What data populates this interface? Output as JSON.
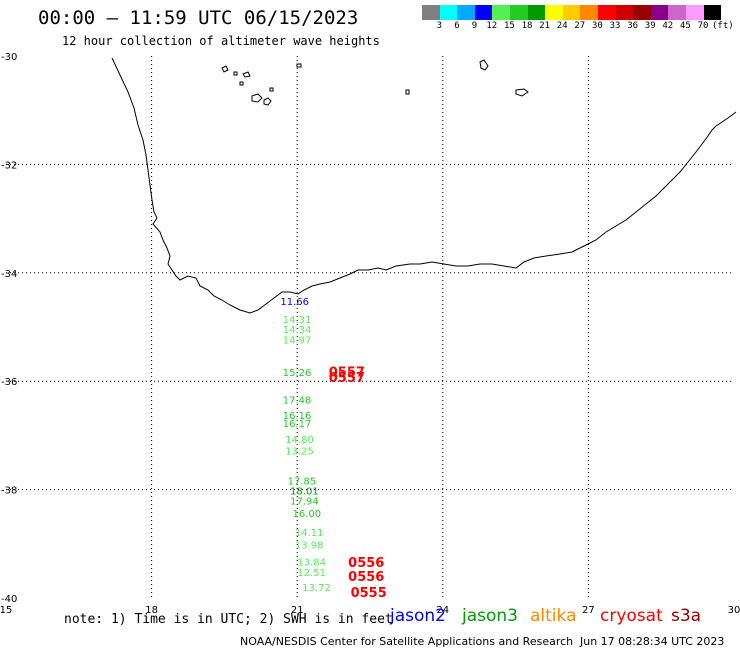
{
  "header": {
    "title": "00:00 – 11:59 UTC 06/15/2023",
    "subtitle": "12 hour collection of altimeter wave heights"
  },
  "color_scale": {
    "colors": [
      "#808080",
      "#00ffff",
      "#00aaff",
      "#0000ff",
      "#55ee55",
      "#22cc22",
      "#009900",
      "#ffff00",
      "#ffcc00",
      "#ff8800",
      "#ff0000",
      "#cc0000",
      "#990000",
      "#880088",
      "#cc66cc",
      "#ff99ff",
      "#000000"
    ],
    "labels": [
      "3",
      "6",
      "9",
      "12",
      "15",
      "18",
      "21",
      "24",
      "27",
      "30",
      "33",
      "36",
      "39",
      "42",
      "45",
      "70"
    ],
    "unit": "(ft)"
  },
  "map": {
    "lon_range": [
      15,
      30
    ],
    "lat_range": [
      -40,
      -30
    ],
    "lon_ticks": [
      "15",
      "18",
      "21",
      "24",
      "27",
      "30"
    ],
    "lat_ticks": [
      "-30",
      "-32",
      "-34",
      "-36",
      "-38",
      "-40"
    ],
    "observations": [
      {
        "lon": 20.9,
        "lat": -34.52,
        "text": "11.66",
        "color": "#0000ff"
      },
      {
        "lon": 20.95,
        "lat": -34.85,
        "text": "14.31",
        "color": "#55ee55"
      },
      {
        "lon": 20.95,
        "lat": -35.04,
        "text": "14.34",
        "color": "#55ee55"
      },
      {
        "lon": 20.95,
        "lat": -35.23,
        "text": "14.97",
        "color": "#55ee55"
      },
      {
        "lon": 20.95,
        "lat": -35.83,
        "text": "15.26",
        "color": "#22cc22"
      },
      {
        "lon": 20.95,
        "lat": -36.34,
        "text": "17.48",
        "color": "#22cc22"
      },
      {
        "lon": 20.95,
        "lat": -36.62,
        "text": "16.16",
        "color": "#22cc22"
      },
      {
        "lon": 20.95,
        "lat": -36.77,
        "text": "16.17",
        "color": "#22cc22"
      },
      {
        "lon": 21.0,
        "lat": -37.07,
        "text": "14.80",
        "color": "#55ee55"
      },
      {
        "lon": 21.0,
        "lat": -37.28,
        "text": "13.25",
        "color": "#55ee55"
      },
      {
        "lon": 21.05,
        "lat": -37.83,
        "text": "17.85",
        "color": "#22cc22"
      },
      {
        "lon": 21.1,
        "lat": -38.02,
        "text": "18.01",
        "color": "#009900"
      },
      {
        "lon": 21.1,
        "lat": -38.2,
        "text": "17.94",
        "color": "#22cc22"
      },
      {
        "lon": 21.15,
        "lat": -38.43,
        "text": "16.00",
        "color": "#22cc22"
      },
      {
        "lon": 21.2,
        "lat": -38.78,
        "text": "14.11",
        "color": "#55ee55"
      },
      {
        "lon": 21.2,
        "lat": -39.01,
        "text": "13.98",
        "color": "#55ee55"
      },
      {
        "lon": 21.25,
        "lat": -39.33,
        "text": "13.84",
        "color": "#55ee55"
      },
      {
        "lon": 21.25,
        "lat": -39.52,
        "text": "12.51",
        "color": "#55ee55"
      },
      {
        "lon": 21.35,
        "lat": -39.8,
        "text": "13.72",
        "color": "#55ee55"
      }
    ],
    "markers": [
      {
        "lon": 21.65,
        "lat": -35.82,
        "text": "0557",
        "color": "#ff0000"
      },
      {
        "lon": 21.65,
        "lat": -35.92,
        "text": "0557",
        "color": "#ff0000"
      },
      {
        "lon": 22.05,
        "lat": -39.34,
        "text": "0556",
        "color": "#ff0000"
      },
      {
        "lon": 22.05,
        "lat": -39.59,
        "text": "0556",
        "color": "#ff0000"
      },
      {
        "lon": 22.1,
        "lat": -39.89,
        "text": "0555",
        "color": "#ff0000"
      }
    ]
  },
  "note": "note: 1) Time is in UTC; 2) SWH is in feet",
  "legend": [
    {
      "name": "jason2",
      "color": "#0000ff"
    },
    {
      "name": "jason3",
      "color": "#009900"
    },
    {
      "name": "altika",
      "color": "#ff8800"
    },
    {
      "name": "cryosat",
      "color": "#ff0000"
    },
    {
      "name": "s3a",
      "color": "#990000"
    }
  ],
  "footer": {
    "credit": "NOAA/NESDIS Center for Satellite Applications and Research",
    "timestamp": "Jun 17 08:28:34 UTC 2023"
  }
}
